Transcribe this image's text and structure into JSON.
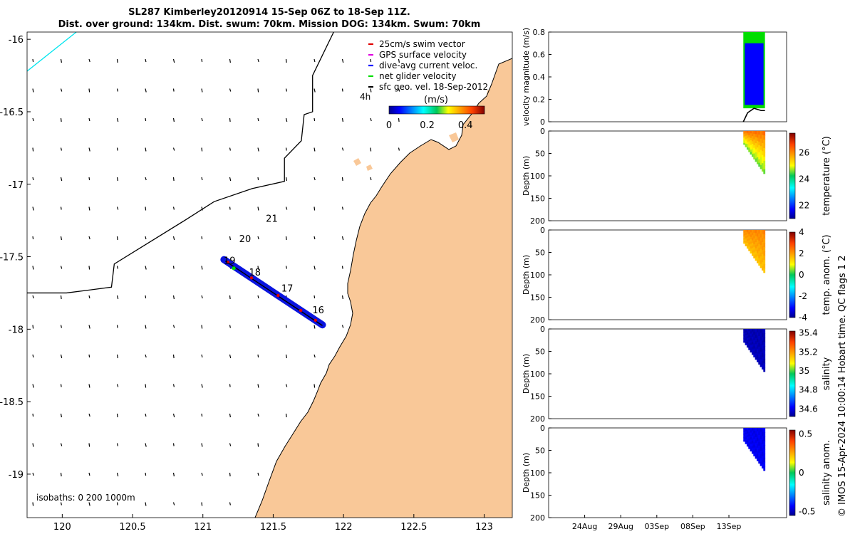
{
  "title_line1": "SL287 Kimberley20120914 15-Sep 06Z to 18-Sep 11Z.",
  "title_line2": "Dist. over ground: 134km. Dist. swum: 70km. Mission DOG: 134km. Swum: 70km",
  "isobaths_note": "isobaths: 0   200  1000m",
  "side_caption": "© IMOS 15-Apr-2024 10:00:14 Hobart time. QC flags 1  2",
  "colors": {
    "land": "#F9C898",
    "track": "#0A14E0",
    "swim_vector": "#E00000",
    "gps_velocity": "#E000E0",
    "current": "#0000FF",
    "net_velocity": "#00DD00",
    "geo_vector": "#000000",
    "coastline_cyan": "#00E5EE"
  },
  "chart_data": [
    {
      "type": "scatter",
      "name": "map",
      "xlim": [
        119.75,
        123.2
      ],
      "ylim": [
        -19.3,
        -15.95
      ],
      "xticks": [
        120,
        120.5,
        121,
        121.5,
        122,
        122.5,
        123
      ],
      "xtick_labels": [
        "120",
        "120.5",
        "121",
        "121.5",
        "122",
        "122.5",
        "123"
      ],
      "yticks": [
        -16,
        -16.5,
        -17,
        -17.5,
        -18,
        -18.5,
        -19
      ],
      "ytick_labels": [
        "-16",
        "-16.5",
        "-17",
        "-17.5",
        "-18",
        "-18.5",
        "-19"
      ],
      "legend": {
        "placement": "top-right",
        "entries": [
          {
            "label": "25cm/s swim vector",
            "color": "#E00000"
          },
          {
            "label": "GPS surface velocity",
            "color": "#E000E0"
          },
          {
            "label": "dive-avg current veloc.",
            "color": "#0000FF"
          },
          {
            "label": "net glider velocity",
            "color": "#00DD00"
          },
          {
            "label": "sfc geo. vel. 18-Sep-2012",
            "color": "#000000"
          }
        ]
      },
      "vector_scale_label": "4h",
      "colorbar": {
        "label": "(m/s)",
        "range": [
          0,
          0.5
        ],
        "ticks": [
          0,
          0.2,
          0.4
        ],
        "tick_labels": [
          "0",
          "0.2",
          "0.4"
        ]
      },
      "track": {
        "lon": [
          121.15,
          121.85
        ],
        "lat": [
          -17.52,
          -17.97
        ]
      },
      "day_labels": [
        {
          "text": "21",
          "lon": 121.49,
          "lat": -17.26
        },
        {
          "text": "20",
          "lon": 121.3,
          "lat": -17.4
        },
        {
          "text": "19",
          "lon": 121.19,
          "lat": -17.55
        },
        {
          "text": "18",
          "lon": 121.37,
          "lat": -17.63
        },
        {
          "text": "17",
          "lon": 121.6,
          "lat": -17.74
        },
        {
          "text": "16",
          "lon": 121.82,
          "lat": -17.89
        }
      ],
      "isobath_lon": [
        121.93,
        121.78,
        121.78,
        121.72,
        121.7,
        121.58,
        121.58,
        121.35,
        121.08,
        120.87,
        120.37,
        120.35,
        120.03,
        119.75
      ],
      "isobath_lat": [
        -15.95,
        -16.25,
        -16.5,
        -16.52,
        -16.7,
        -16.82,
        -16.98,
        -17.03,
        -17.12,
        -17.25,
        -17.55,
        -17.71,
        -17.75,
        -17.75
      ],
      "cyan_line_lon": [
        120.1,
        119.75
      ],
      "cyan_line_lat": [
        -15.95,
        -16.22
      ]
    },
    {
      "type": "line",
      "name": "velocity",
      "ylabel": "velocity magnitude (m/s)",
      "ylim": [
        0,
        0.8
      ],
      "yticks": [
        0,
        0.2,
        0.4,
        0.6,
        0.8
      ],
      "ytick_labels": [
        "0",
        "0.2",
        "0.4",
        "0.6",
        "0.8"
      ],
      "time_range": [
        "2012-08-19",
        "2012-09-21"
      ],
      "data_span": [
        "2012-09-15",
        "2012-09-18"
      ],
      "net_velocity_range": [
        0.55,
        0.8
      ],
      "current_range": [
        0.15,
        0.7
      ]
    },
    {
      "type": "heatmap",
      "name": "temperature",
      "ylabel": "Depth (m)",
      "colorbar_label": "temperature (°C)",
      "ylim": [
        0,
        200
      ],
      "yticks": [
        0,
        50,
        100,
        150,
        200
      ],
      "ytick_labels": [
        "0",
        "50",
        "100",
        "150",
        "200"
      ],
      "clim": [
        21,
        27.5
      ],
      "cticks": [
        22,
        24,
        26
      ],
      "ctick_labels": [
        "22",
        "24",
        "26"
      ],
      "surface_value": 26.2,
      "deep_value": 24.6,
      "max_depth_start": 30,
      "max_depth_end": 95
    },
    {
      "type": "heatmap",
      "name": "temp_anomaly",
      "ylabel": "Depth (m)",
      "colorbar_label": "temp. anom. (°C)",
      "ylim": [
        0,
        200
      ],
      "yticks": [
        0,
        50,
        100,
        150,
        200
      ],
      "ytick_labels": [
        "0",
        "50",
        "100",
        "150",
        "200"
      ],
      "clim": [
        -4,
        4
      ],
      "cticks": [
        -4,
        -2,
        0,
        2,
        4
      ],
      "ctick_labels": [
        "-4",
        "-2",
        "0",
        "2",
        "4"
      ],
      "surface_value": 2.2,
      "deep_value": 1.6,
      "max_depth_start": 30,
      "max_depth_end": 95
    },
    {
      "type": "heatmap",
      "name": "salinity",
      "ylabel": "Depth (m)",
      "colorbar_label": "salinity",
      "ylim": [
        0,
        200
      ],
      "yticks": [
        0,
        50,
        100,
        150,
        200
      ],
      "ytick_labels": [
        "0",
        "50",
        "100",
        "150",
        "200"
      ],
      "clim": [
        34.52,
        35.42
      ],
      "cticks": [
        34.6,
        34.8,
        35,
        35.2,
        35.4
      ],
      "ctick_labels": [
        "34.6",
        "34.8",
        "35",
        "35.2",
        "35.4"
      ],
      "surface_value": 34.55,
      "deep_value": 34.56,
      "max_depth_start": 30,
      "max_depth_end": 95
    },
    {
      "type": "heatmap",
      "name": "salinity_anomaly",
      "ylabel": "Depth (m)",
      "colorbar_label": "salinity anom.",
      "ylim": [
        0,
        200
      ],
      "yticks": [
        0,
        50,
        100,
        150,
        200
      ],
      "ytick_labels": [
        "0",
        "50",
        "100",
        "150",
        "200"
      ],
      "clim": [
        -0.55,
        0.55
      ],
      "cticks": [
        -0.5,
        0,
        0.5
      ],
      "ctick_labels": [
        "-0.5",
        "0",
        "0.5"
      ],
      "surface_value": -0.45,
      "deep_value": -0.44,
      "max_depth_start": 30,
      "max_depth_end": 95,
      "xtick_labels": [
        "24Aug",
        "29Aug",
        "03Sep",
        "08Sep",
        "13Sep"
      ],
      "xtick_dates": [
        "2012-08-24",
        "2012-08-29",
        "2012-09-03",
        "2012-09-08",
        "2012-09-13"
      ]
    }
  ]
}
